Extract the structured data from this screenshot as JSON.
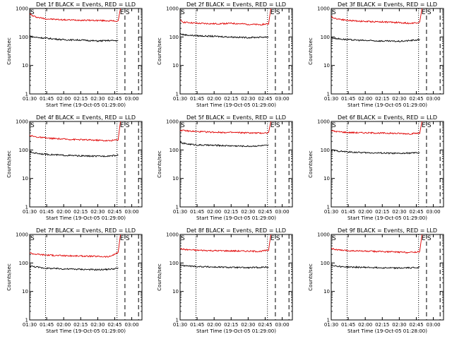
{
  "figure": {
    "panel_count": 9
  },
  "chart_data": [
    {
      "type": "line",
      "title": "Det 1f BLACK = Events, RED = LLD",
      "xlabel": "Start Time (19-Oct-05 01:29:00)",
      "ylabel": "Counts/sec",
      "xlim": [
        "01:30",
        "03:09"
      ],
      "ylim": [
        1,
        1000
      ],
      "yscale": "log",
      "xticks": [
        "01:30",
        "01:45",
        "02:00",
        "02:15",
        "02:30",
        "02:45",
        "03:00"
      ],
      "yticks": [
        "1",
        "10",
        "100",
        "1000"
      ],
      "markers": {
        "start": "S",
        "end": "E"
      },
      "vlines": [
        {
          "x": "01:44",
          "style": "dotted"
        },
        {
          "x": "02:47",
          "style": "dotted"
        },
        {
          "x": "02:54",
          "style": "dashed"
        },
        {
          "x": "03:06",
          "style": "dashed"
        }
      ],
      "series": [
        {
          "color": "#e00000",
          "x": [
            "01:30",
            "01:33",
            "01:38",
            "01:45",
            "02:00",
            "02:15",
            "02:30",
            "02:40",
            "02:48",
            "02:50"
          ],
          "values": [
            650,
            540,
            480,
            430,
            400,
            390,
            380,
            370,
            360,
            1000
          ]
        },
        {
          "color": "#000000",
          "x": [
            "01:30",
            "01:33",
            "01:38",
            "01:45",
            "02:00",
            "02:15",
            "02:30",
            "02:40",
            "02:48"
          ],
          "values": [
            110,
            100,
            95,
            90,
            80,
            78,
            72,
            75,
            74
          ]
        }
      ]
    },
    {
      "type": "line",
      "title": "Det 2f BLACK = Events, RED = LLD",
      "xlabel": "Start Time (19-Oct-05 01:29:00)",
      "ylabel": "Counts/sec",
      "xlim": [
        "01:30",
        "03:09"
      ],
      "ylim": [
        1,
        1000
      ],
      "yscale": "log",
      "xticks": [
        "01:30",
        "01:45",
        "02:00",
        "02:15",
        "02:30",
        "02:45",
        "03:00"
      ],
      "yticks": [
        "1",
        "10",
        "100",
        "1000"
      ],
      "markers": {
        "start": "S",
        "end": "E"
      },
      "vlines": [
        {
          "x": "01:44",
          "style": "dotted"
        },
        {
          "x": "02:47",
          "style": "dotted"
        },
        {
          "x": "02:54",
          "style": "dashed"
        },
        {
          "x": "03:06",
          "style": "dashed"
        }
      ],
      "series": [
        {
          "color": "#e00000",
          "x": [
            "01:30",
            "01:33",
            "01:38",
            "01:45",
            "02:00",
            "02:15",
            "02:30",
            "02:40",
            "02:48",
            "02:50"
          ],
          "values": [
            380,
            330,
            320,
            300,
            290,
            300,
            280,
            270,
            290,
            1000
          ]
        },
        {
          "color": "#000000",
          "x": [
            "01:30",
            "01:33",
            "01:38",
            "01:45",
            "02:00",
            "02:15",
            "02:30",
            "02:40",
            "02:48"
          ],
          "values": [
            130,
            120,
            115,
            110,
            105,
            100,
            95,
            98,
            100
          ]
        }
      ]
    },
    {
      "type": "line",
      "title": "Det 3f BLACK = Events, RED = LLD",
      "xlabel": "Start Time (19-Oct-05 01:29:00)",
      "ylabel": "Counts/sec",
      "xlim": [
        "01:30",
        "03:09"
      ],
      "ylim": [
        1,
        1000
      ],
      "yscale": "log",
      "xticks": [
        "01:30",
        "01:45",
        "02:00",
        "02:15",
        "02:30",
        "02:45",
        "03:00"
      ],
      "yticks": [
        "1",
        "10",
        "100",
        "1000"
      ],
      "markers": {
        "start": "S",
        "end": "E"
      },
      "vlines": [
        {
          "x": "01:44",
          "style": "dotted"
        },
        {
          "x": "02:47",
          "style": "dotted"
        },
        {
          "x": "02:54",
          "style": "dashed"
        },
        {
          "x": "03:06",
          "style": "dashed"
        }
      ],
      "series": [
        {
          "color": "#e00000",
          "x": [
            "01:30",
            "01:33",
            "01:38",
            "01:45",
            "02:00",
            "02:15",
            "02:30",
            "02:40",
            "02:48",
            "02:50"
          ],
          "values": [
            520,
            450,
            420,
            380,
            350,
            340,
            320,
            300,
            330,
            1000
          ]
        },
        {
          "color": "#000000",
          "x": [
            "01:30",
            "01:33",
            "01:38",
            "01:45",
            "02:00",
            "02:15",
            "02:30",
            "02:40",
            "02:48"
          ],
          "values": [
            95,
            90,
            85,
            80,
            75,
            72,
            70,
            75,
            80
          ]
        }
      ]
    },
    {
      "type": "line",
      "title": "Det 4f BLACK = Events, RED = LLD",
      "xlabel": "Start Time (19-Oct-05 01:29:00)",
      "ylabel": "Counts/sec",
      "xlim": [
        "01:30",
        "03:09"
      ],
      "ylim": [
        1,
        1000
      ],
      "yscale": "log",
      "xticks": [
        "01:30",
        "01:45",
        "02:00",
        "02:15",
        "02:30",
        "02:45",
        "03:00"
      ],
      "yticks": [
        "1",
        "10",
        "100",
        "1000"
      ],
      "markers": {
        "start": "S",
        "end": "E"
      },
      "vlines": [
        {
          "x": "01:44",
          "style": "dotted"
        },
        {
          "x": "02:47",
          "style": "dotted"
        },
        {
          "x": "02:54",
          "style": "dashed"
        },
        {
          "x": "03:06",
          "style": "dashed"
        }
      ],
      "series": [
        {
          "color": "#e00000",
          "x": [
            "01:30",
            "01:33",
            "01:38",
            "01:45",
            "02:00",
            "02:15",
            "02:30",
            "02:40",
            "02:48",
            "02:50"
          ],
          "values": [
            330,
            300,
            280,
            260,
            240,
            230,
            220,
            210,
            230,
            1000
          ]
        },
        {
          "color": "#000000",
          "x": [
            "01:30",
            "01:33",
            "01:38",
            "01:45",
            "02:00",
            "02:15",
            "02:30",
            "02:40",
            "02:48"
          ],
          "values": [
            85,
            80,
            75,
            70,
            65,
            62,
            60,
            62,
            65
          ]
        }
      ]
    },
    {
      "type": "line",
      "title": "Det 5f BLACK = Events, RED = LLD",
      "xlabel": "Start Time (19-Oct-05 01:29:00)",
      "ylabel": "Counts/sec",
      "xlim": [
        "01:30",
        "03:09"
      ],
      "ylim": [
        1,
        1000
      ],
      "yscale": "log",
      "xticks": [
        "01:30",
        "01:45",
        "02:00",
        "02:15",
        "02:30",
        "02:45",
        "03:00"
      ],
      "yticks": [
        "1",
        "10",
        "100",
        "1000"
      ],
      "markers": {
        "start": "S",
        "end": "E"
      },
      "vlines": [
        {
          "x": "01:44",
          "style": "dotted"
        },
        {
          "x": "02:47",
          "style": "dotted"
        },
        {
          "x": "02:54",
          "style": "dashed"
        },
        {
          "x": "03:06",
          "style": "dashed"
        }
      ],
      "series": [
        {
          "color": "#e00000",
          "x": [
            "01:30",
            "01:33",
            "01:38",
            "01:45",
            "02:00",
            "02:15",
            "02:30",
            "02:40",
            "02:48",
            "02:50"
          ],
          "values": [
            500,
            480,
            460,
            440,
            420,
            410,
            400,
            390,
            400,
            1000
          ]
        },
        {
          "color": "#000000",
          "x": [
            "01:30",
            "01:33",
            "01:38",
            "01:45",
            "02:00",
            "02:15",
            "02:30",
            "02:40",
            "02:48"
          ],
          "values": [
            180,
            170,
            160,
            150,
            145,
            140,
            135,
            140,
            145
          ]
        }
      ]
    },
    {
      "type": "line",
      "title": "Det 6f BLACK = Events, RED = LLD",
      "xlabel": "Start Time (19-Oct-05 01:29:00)",
      "ylabel": "Counts/sec",
      "xlim": [
        "01:30",
        "03:09"
      ],
      "ylim": [
        1,
        1000
      ],
      "yscale": "log",
      "xticks": [
        "01:30",
        "01:45",
        "02:00",
        "02:15",
        "02:30",
        "02:45",
        "03:00"
      ],
      "yticks": [
        "1",
        "10",
        "100",
        "1000"
      ],
      "markers": {
        "start": "S",
        "end": "E"
      },
      "vlines": [
        {
          "x": "01:44",
          "style": "dotted"
        },
        {
          "x": "02:47",
          "style": "dotted"
        },
        {
          "x": "02:54",
          "style": "dashed"
        },
        {
          "x": "03:06",
          "style": "dashed"
        }
      ],
      "series": [
        {
          "color": "#e00000",
          "x": [
            "01:30",
            "01:33",
            "01:38",
            "01:45",
            "02:00",
            "02:15",
            "02:30",
            "02:40",
            "02:48",
            "02:50"
          ],
          "values": [
            480,
            450,
            430,
            410,
            400,
            390,
            380,
            370,
            390,
            1000
          ]
        },
        {
          "color": "#000000",
          "x": [
            "01:30",
            "01:33",
            "01:38",
            "01:45",
            "02:00",
            "02:15",
            "02:30",
            "02:40",
            "02:48"
          ],
          "values": [
            100,
            95,
            90,
            85,
            80,
            78,
            75,
            78,
            80
          ]
        }
      ]
    },
    {
      "type": "line",
      "title": "Det 7f BLACK = Events, RED = LLD",
      "xlabel": "Start Time (19-Oct-05 01:29:00)",
      "ylabel": "Counts/sec",
      "xlim": [
        "01:30",
        "03:09"
      ],
      "ylim": [
        1,
        1000
      ],
      "yscale": "log",
      "xticks": [
        "01:30",
        "01:45",
        "02:00",
        "02:15",
        "02:30",
        "02:45",
        "03:00"
      ],
      "yticks": [
        "1",
        "10",
        "100",
        "1000"
      ],
      "markers": {
        "start": "S",
        "end": "E"
      },
      "vlines": [
        {
          "x": "01:44",
          "style": "dotted"
        },
        {
          "x": "02:47",
          "style": "dotted"
        },
        {
          "x": "02:54",
          "style": "dashed"
        },
        {
          "x": "03:06",
          "style": "dashed"
        }
      ],
      "series": [
        {
          "color": "#e00000",
          "x": [
            "01:30",
            "01:33",
            "01:38",
            "01:45",
            "02:00",
            "02:15",
            "02:30",
            "02:40",
            "02:48",
            "02:50"
          ],
          "values": [
            230,
            210,
            200,
            190,
            180,
            175,
            170,
            165,
            230,
            1000
          ]
        },
        {
          "color": "#000000",
          "x": [
            "01:30",
            "01:33",
            "01:38",
            "01:45",
            "02:00",
            "02:15",
            "02:30",
            "02:40",
            "02:48"
          ],
          "values": [
            80,
            75,
            70,
            65,
            62,
            60,
            58,
            60,
            65
          ]
        }
      ]
    },
    {
      "type": "line",
      "title": "Det 8f BLACK = Events, RED = LLD",
      "xlabel": "Start Time (19-Oct-05 01:29:00)",
      "ylabel": "Counts/sec",
      "xlim": [
        "01:30",
        "03:09"
      ],
      "ylim": [
        1,
        1000
      ],
      "yscale": "log",
      "xticks": [
        "01:30",
        "01:45",
        "02:00",
        "02:15",
        "02:30",
        "02:45",
        "03:00"
      ],
      "yticks": [
        "1",
        "10",
        "100",
        "1000"
      ],
      "markers": {
        "start": "S",
        "end": "E"
      },
      "vlines": [
        {
          "x": "01:44",
          "style": "dotted"
        },
        {
          "x": "02:47",
          "style": "dotted"
        },
        {
          "x": "02:54",
          "style": "dashed"
        },
        {
          "x": "03:06",
          "style": "dashed"
        }
      ],
      "series": [
        {
          "color": "#e00000",
          "x": [
            "01:30",
            "01:33",
            "01:38",
            "01:45",
            "02:00",
            "02:15",
            "02:30",
            "02:40",
            "02:48",
            "02:50"
          ],
          "values": [
            320,
            300,
            290,
            280,
            270,
            265,
            260,
            255,
            280,
            1000
          ]
        },
        {
          "color": "#000000",
          "x": [
            "01:30",
            "01:33",
            "01:38",
            "01:45",
            "02:00",
            "02:15",
            "02:30",
            "02:40",
            "02:48"
          ],
          "values": [
            85,
            80,
            78,
            75,
            72,
            70,
            68,
            70,
            72
          ]
        }
      ]
    },
    {
      "type": "line",
      "title": "Det 9f BLACK = Events, RED = LLD",
      "xlabel": "Start Time (19-Oct-05 01:28:00)",
      "ylabel": "Counts/sec",
      "xlim": [
        "01:30",
        "03:09"
      ],
      "ylim": [
        1,
        1000
      ],
      "yscale": "log",
      "xticks": [
        "01:30",
        "01:45",
        "02:00",
        "02:15",
        "02:30",
        "02:45",
        "03:00"
      ],
      "yticks": [
        "1",
        "10",
        "100",
        "1000"
      ],
      "markers": {
        "start": "S",
        "end": "E"
      },
      "vlines": [
        {
          "x": "01:44",
          "style": "dotted"
        },
        {
          "x": "02:47",
          "style": "dotted"
        },
        {
          "x": "02:54",
          "style": "dashed"
        },
        {
          "x": "03:06",
          "style": "dashed"
        }
      ],
      "series": [
        {
          "color": "#e00000",
          "x": [
            "01:30",
            "01:33",
            "01:38",
            "01:45",
            "02:00",
            "02:15",
            "02:30",
            "02:40",
            "02:48",
            "02:50"
          ],
          "values": [
            330,
            300,
            280,
            270,
            260,
            250,
            240,
            235,
            250,
            1000
          ]
        },
        {
          "color": "#000000",
          "x": [
            "01:30",
            "01:33",
            "01:38",
            "01:45",
            "02:00",
            "02:15",
            "02:30",
            "02:40",
            "02:48"
          ],
          "values": [
            85,
            80,
            75,
            72,
            70,
            68,
            66,
            68,
            70
          ]
        }
      ]
    }
  ]
}
